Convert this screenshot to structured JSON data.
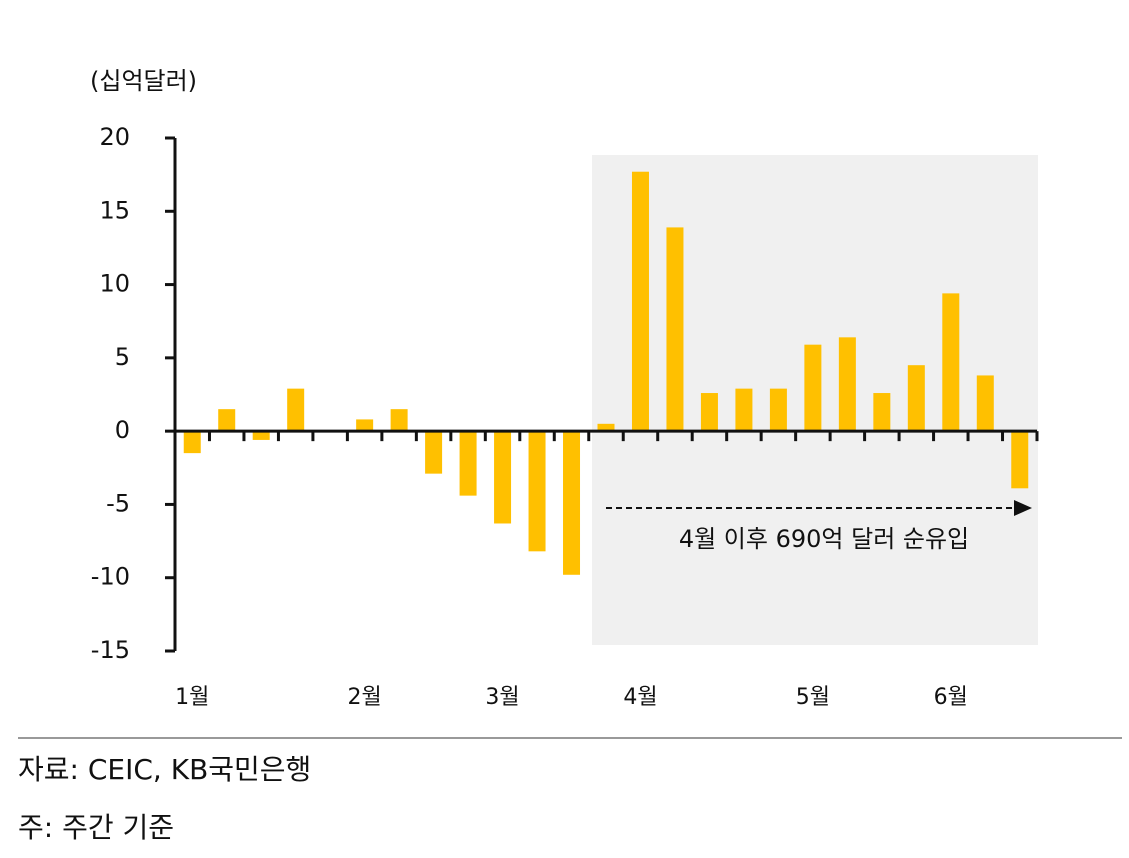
{
  "chart_data": {
    "type": "bar",
    "unit_label": "(십억달러)",
    "categories": [
      "1월",
      null,
      null,
      null,
      null,
      "2월",
      null,
      null,
      null,
      "3월",
      null,
      null,
      null,
      "4월",
      null,
      null,
      null,
      null,
      "5월",
      null,
      null,
      null,
      "6월",
      null,
      null
    ],
    "values": [
      -1.5,
      1.5,
      -0.6,
      2.9,
      0,
      0.8,
      1.5,
      -2.9,
      -4.4,
      -6.3,
      -8.2,
      -9.8,
      0.5,
      17.7,
      13.9,
      2.6,
      2.9,
      2.9,
      5.9,
      6.4,
      2.6,
      4.5,
      9.4,
      3.8,
      -3.9
    ],
    "color": "#ffc000",
    "ylim": [
      -15,
      20
    ],
    "yticks": [
      -15,
      -10,
      -5,
      0,
      5,
      10,
      15,
      20
    ],
    "annotation": "4월 이후 690억 달러 순유입",
    "source": "자료: CEIC, KB국민은행",
    "note": "주: 주간 기준"
  }
}
